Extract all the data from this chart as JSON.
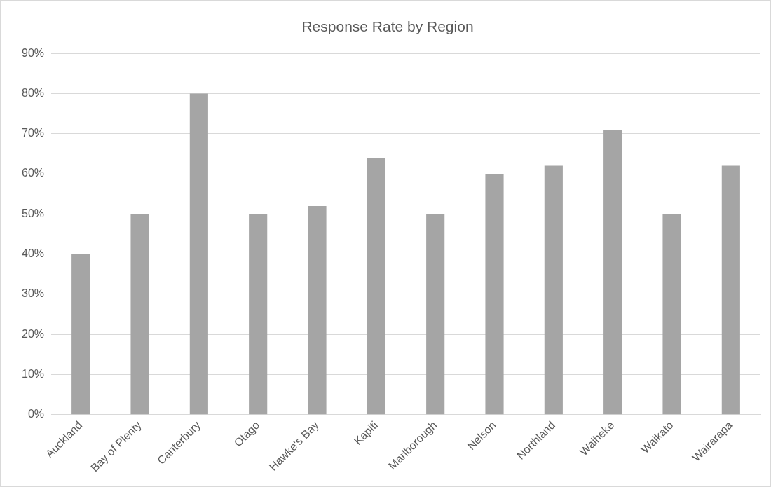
{
  "chart_data": {
    "type": "bar",
    "title": "Response Rate by Region",
    "categories": [
      "Auckland",
      "Bay of Plenty",
      "Canterbury",
      "Otago",
      "Hawke's Bay",
      "Kapiti",
      "Marlborough",
      "Nelson",
      "Northland",
      "Waiheke",
      "Waikato",
      "Wairarapa"
    ],
    "values": [
      40,
      50,
      80,
      50,
      52,
      64,
      50,
      60,
      62,
      71,
      50,
      62
    ],
    "color": "#a5a5a5",
    "ylim": [
      0,
      90
    ],
    "yticks": [
      {
        "value": 0,
        "label": "0%"
      },
      {
        "value": 10,
        "label": "10%"
      },
      {
        "value": 20,
        "label": "20%"
      },
      {
        "value": 30,
        "label": "30%"
      },
      {
        "value": 40,
        "label": "40%"
      },
      {
        "value": 50,
        "label": "50%"
      },
      {
        "value": 60,
        "label": "60%"
      },
      {
        "value": 70,
        "label": "70%"
      },
      {
        "value": 80,
        "label": "80%"
      },
      {
        "value": 90,
        "label": "90%"
      }
    ],
    "grid": "y"
  }
}
